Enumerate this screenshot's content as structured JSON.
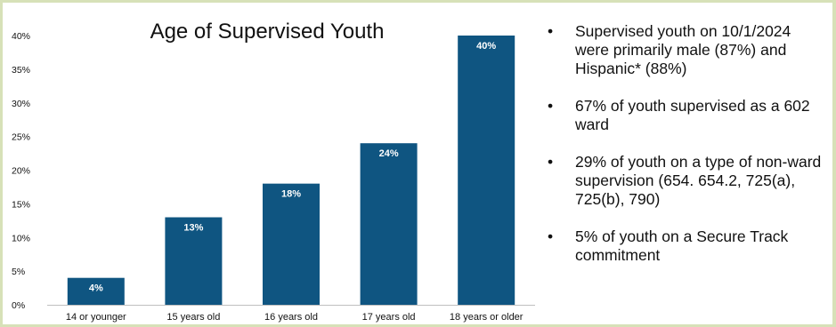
{
  "chart_data": {
    "type": "bar",
    "title": "Age of Supervised Youth",
    "categories": [
      "14 or younger",
      "15 years old",
      "16 years old",
      "17 years old",
      "18 years or older"
    ],
    "values": [
      4,
      13,
      18,
      24,
      40
    ],
    "value_labels": [
      "4%",
      "13%",
      "18%",
      "24%",
      "40%"
    ],
    "y_ticks": [
      "0%",
      "5%",
      "10%",
      "15%",
      "20%",
      "25%",
      "30%",
      "35%",
      "40%"
    ],
    "ylim": [
      0,
      40
    ],
    "grid": false,
    "bar_color": "#0f5581",
    "label_color": "#ffffff"
  },
  "bullets": [
    "Supervised youth on 10/1/2024 were primarily male (87%) and Hispanic* (88%)",
    "67% of youth supervised as a 602 ward",
    "29% of youth on a type of non-ward supervision (654. 654.2, 725(a), 725(b), 790)",
    "5% of youth on a Secure Track commitment"
  ],
  "colors": {
    "frame_border": "#d7e1b8",
    "axis": "#bfbfbf",
    "text": "#111111"
  }
}
